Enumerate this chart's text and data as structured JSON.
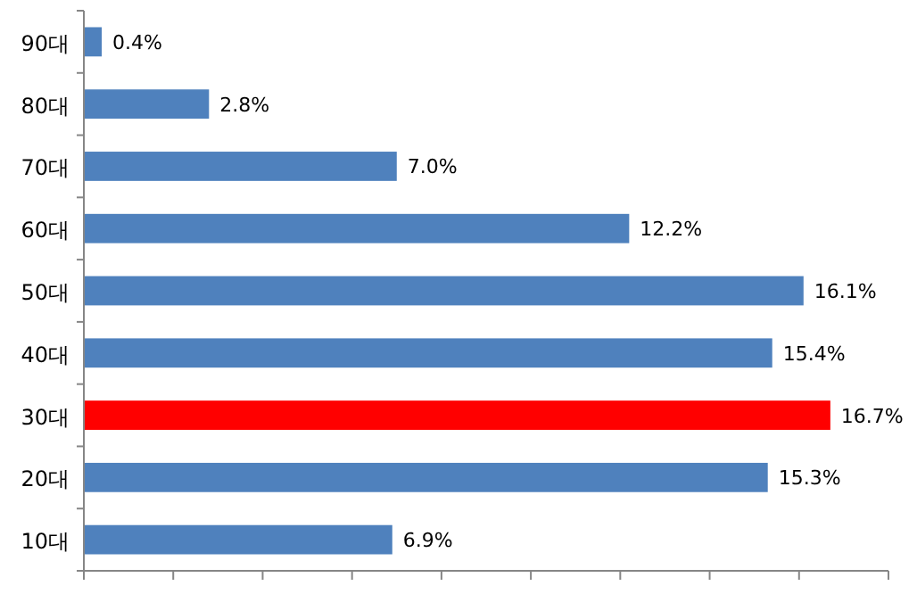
{
  "chart_data": {
    "type": "bar",
    "orientation": "horizontal",
    "categories": [
      "90대",
      "80대",
      "70대",
      "60대",
      "50대",
      "40대",
      "30대",
      "20대",
      "10대"
    ],
    "values": [
      0.4,
      2.8,
      7.0,
      12.2,
      16.1,
      15.4,
      16.7,
      15.3,
      6.9
    ],
    "value_labels": [
      "0.4%",
      "2.8%",
      "7.0%",
      "12.2%",
      "16.1%",
      "15.4%",
      "16.7%",
      "15.3%",
      "6.9%"
    ],
    "colors": [
      "#4f81bd",
      "#4f81bd",
      "#4f81bd",
      "#4f81bd",
      "#4f81bd",
      "#4f81bd",
      "#ff0000",
      "#4f81bd",
      "#4f81bd"
    ],
    "xlim": [
      0,
      18
    ],
    "xticks": [
      {
        "value": 0,
        "label": null
      },
      {
        "value": 2,
        "label": null
      },
      {
        "value": 4,
        "label": null
      },
      {
        "value": 6,
        "label": null
      },
      {
        "value": 8,
        "label": null
      },
      {
        "value": 10,
        "label": null
      },
      {
        "value": 12,
        "label": null
      },
      {
        "value": 14,
        "label": null
      },
      {
        "value": 16,
        "label": null
      },
      {
        "value": 18,
        "label": null
      }
    ],
    "tick_labels": "y"
  }
}
